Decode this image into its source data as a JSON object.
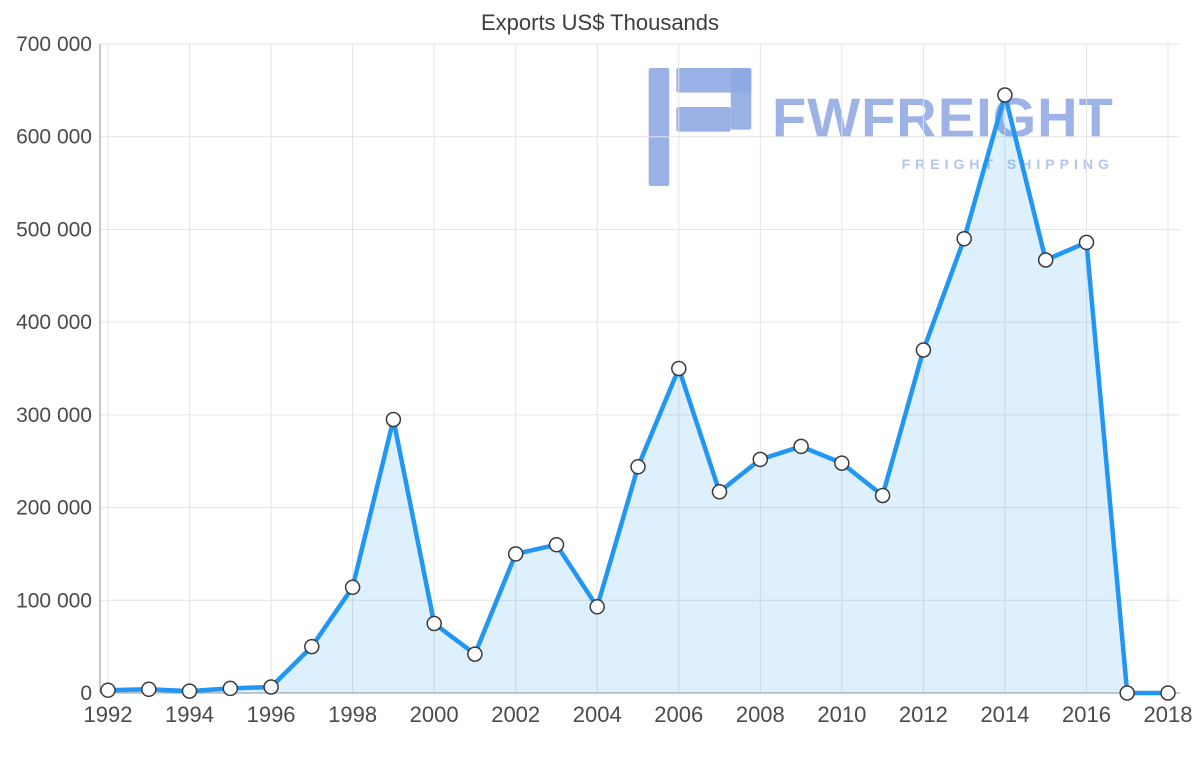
{
  "watermark": {
    "brand": "FWFREIGHT",
    "tagline": "FREIGHT SHIPPING",
    "logo_color": "#8ea8e2"
  },
  "chart_data": {
    "type": "area",
    "title": "Exports US$ Thousands",
    "xlabel": "",
    "ylabel": "",
    "x": [
      1992,
      1993,
      1994,
      1995,
      1996,
      1997,
      1998,
      1999,
      2000,
      2001,
      2002,
      2003,
      2004,
      2005,
      2006,
      2007,
      2008,
      2009,
      2010,
      2011,
      2012,
      2013,
      2014,
      2015,
      2016,
      2017,
      2018
    ],
    "values": [
      3000,
      4000,
      2000,
      5000,
      6500,
      50000,
      114000,
      295000,
      75000,
      42000,
      150000,
      160000,
      93000,
      244000,
      350000,
      217000,
      252000,
      266000,
      248000,
      213000,
      370000,
      490000,
      645000,
      467000,
      486000,
      0,
      0
    ],
    "ylim": [
      0,
      700000
    ],
    "y_tick_step": 100000,
    "y_tick_labels": [
      "0",
      "100 000",
      "200 000",
      "300 000",
      "400 000",
      "500 000",
      "600 000",
      "700 000"
    ],
    "x_tick_labels": [
      "1992",
      "1994",
      "1996",
      "1998",
      "2000",
      "2002",
      "2004",
      "2006",
      "2008",
      "2010",
      "2012",
      "2014",
      "2016",
      "2018"
    ],
    "grid": true,
    "legend": "none",
    "line_color": "#2196f3",
    "fill_color": "rgba(33,150,243,0.15)",
    "marker_fill": "#ffffff",
    "marker_stroke": "#3a3a3a",
    "grid_color": "#e3e3e3",
    "axis_color": "#aaaaaa",
    "tick_color": "#4a4a4a"
  }
}
